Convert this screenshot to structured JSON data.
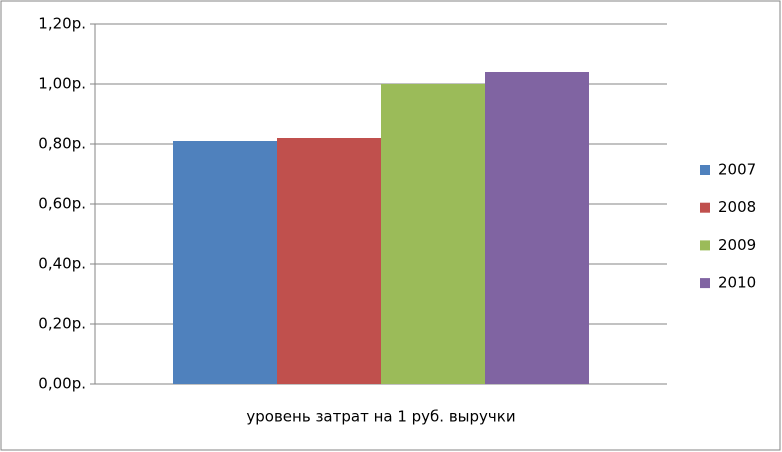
{
  "chart_data": {
    "type": "bar",
    "categories": [
      "уровень затрат на 1 руб. выручки"
    ],
    "series": [
      {
        "name": "2007",
        "color": "#4f81bd",
        "values": [
          0.81
        ]
      },
      {
        "name": "2008",
        "color": "#c0504d",
        "values": [
          0.82
        ]
      },
      {
        "name": "2009",
        "color": "#9bbb59",
        "values": [
          1.0
        ]
      },
      {
        "name": "2010",
        "color": "#8064a2",
        "values": [
          1.04
        ]
      }
    ],
    "ylim": [
      0,
      1.2
    ],
    "yticks": [
      {
        "value": 0,
        "label": "0,00р."
      },
      {
        "value": 0.2,
        "label": "0,20р."
      },
      {
        "value": 0.4,
        "label": "0,40р."
      },
      {
        "value": 0.6,
        "label": "0,60р."
      },
      {
        "value": 0.8,
        "label": "0,80р."
      },
      {
        "value": 1.0,
        "label": "1,00р."
      },
      {
        "value": 1.2,
        "label": "1,20р."
      }
    ],
    "grid": true,
    "legend": "right"
  }
}
